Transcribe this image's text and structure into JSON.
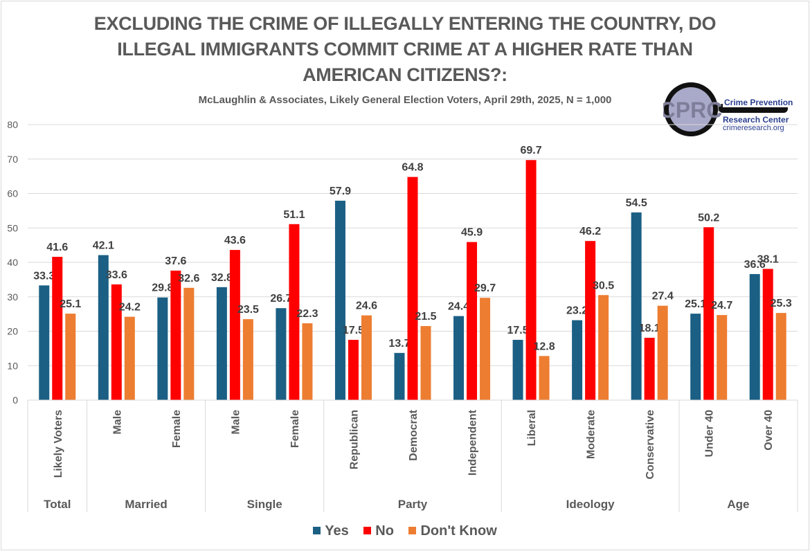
{
  "title_lines": [
    "EXCLUDING THE CRIME OF ILLEGALLY ENTERING THE COUNTRY, DO",
    "ILLEGAL IMMIGRANTS COMMIT CRIME AT A HIGHER RATE THAN",
    "AMERICAN CITIZENS?:"
  ],
  "subtitle": "McLaughlin & Associates, Likely General Election Voters, April 29th, 2025, N = 1,000",
  "logo": {
    "monogram": "CPRC",
    "line1": "Crime Prevention",
    "line2": "Research Center",
    "url": "crimeresearch.org"
  },
  "colors": {
    "yes": "#1b5f84",
    "no": "#ff0000",
    "dont_know": "#ed7d31",
    "text": "#595959",
    "grid": "#d9d9d9"
  },
  "chart_data": {
    "type": "bar",
    "title": "EXCLUDING THE CRIME OF ILLEGALLY ENTERING THE COUNTRY, DO ILLEGAL IMMIGRANTS COMMIT CRIME AT A HIGHER RATE THAN AMERICAN CITIZENS?:",
    "subtitle": "McLaughlin & Associates, Likely General Election Voters, April 29th, 2025, N = 1,000",
    "xlabel": "",
    "ylabel": "",
    "ylim": [
      0,
      80
    ],
    "yticks": [
      0,
      10,
      20,
      30,
      40,
      50,
      60,
      70,
      80
    ],
    "grid": true,
    "legend_position": "bottom",
    "categories": [
      "Likely Voters",
      "Male",
      "Female",
      "Male",
      "Female",
      "Republican",
      "Democrat",
      "Independent",
      "Liberal",
      "Moderate",
      "Conservative",
      "Under 40",
      "Over 40"
    ],
    "groups": [
      {
        "label": "Total",
        "count": 1
      },
      {
        "label": "Married",
        "count": 2
      },
      {
        "label": "Single",
        "count": 2
      },
      {
        "label": "Party",
        "count": 3
      },
      {
        "label": "Ideology",
        "count": 3
      },
      {
        "label": "Age",
        "count": 2
      }
    ],
    "series": [
      {
        "name": "Yes",
        "key": "yes",
        "values": [
          33.3,
          42.1,
          29.8,
          32.8,
          26.7,
          57.9,
          13.7,
          24.4,
          17.5,
          23.2,
          54.5,
          25.1,
          36.6
        ]
      },
      {
        "name": "No",
        "key": "no",
        "values": [
          41.6,
          33.6,
          37.6,
          43.6,
          51.1,
          17.5,
          64.8,
          45.9,
          69.7,
          46.2,
          18.1,
          50.2,
          38.1
        ]
      },
      {
        "name": "Don't Know",
        "key": "dont_know",
        "values": [
          25.1,
          24.2,
          32.6,
          23.5,
          22.3,
          24.6,
          21.5,
          29.7,
          12.8,
          30.5,
          27.4,
          24.7,
          25.3
        ]
      }
    ]
  }
}
